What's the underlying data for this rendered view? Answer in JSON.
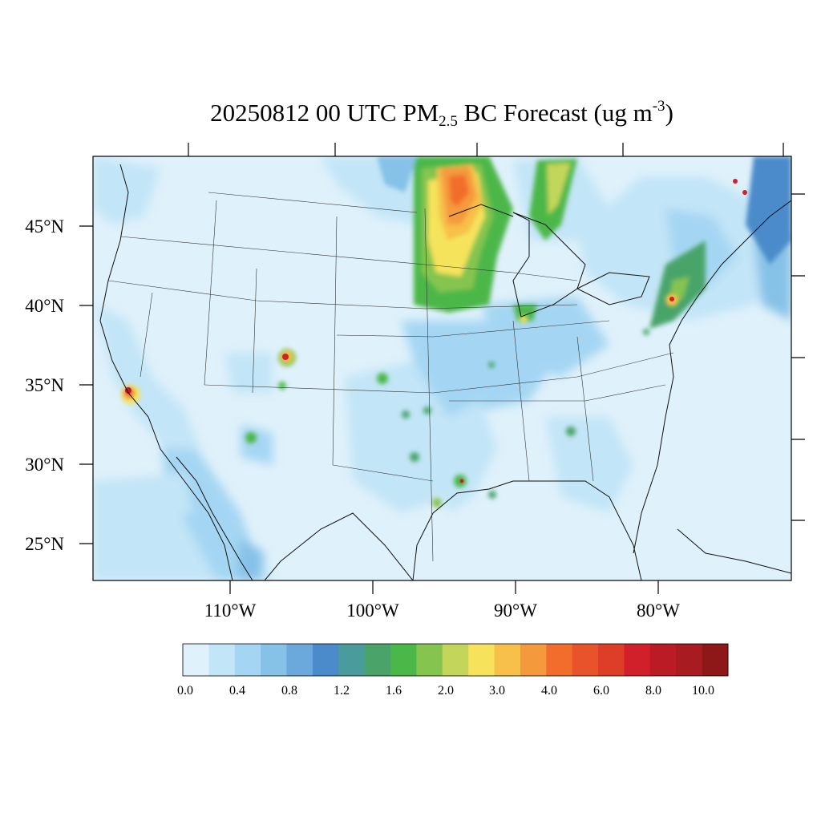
{
  "title": {
    "date": "20250812",
    "time": "00 UTC",
    "species_prefix": "PM",
    "species_sub": "2.5",
    "species_suffix": " BC Forecast (ug m",
    "unit_exp": "-3",
    "close": ")"
  },
  "lat_labels": [
    "45°N",
    "40°N",
    "35°N",
    "30°N",
    "25°N"
  ],
  "lat_values": [
    45,
    40,
    35,
    30,
    25
  ],
  "lon_labels": [
    "110°W",
    "100°W",
    "90°W",
    "80°W"
  ],
  "lon_values": [
    -110,
    -100,
    -90,
    -80
  ],
  "colorbar": {
    "labels": [
      "0.0",
      "0.4",
      "0.8",
      "1.2",
      "1.6",
      "2.0",
      "3.0",
      "4.0",
      "6.0",
      "8.0",
      "10.0"
    ],
    "colors": [
      "#dff1fb",
      "#c2e5f7",
      "#a4d6f3",
      "#86c1e7",
      "#6ba8dc",
      "#4b8bcb",
      "#4a9c9c",
      "#4aa46a",
      "#4bb748",
      "#85c44f",
      "#c3d65b",
      "#f6e35b",
      "#f6c04a",
      "#f59a3c",
      "#f26d2c",
      "#e9532c",
      "#de3d28",
      "#d12029",
      "#bb1b25",
      "#a81b21",
      "#8e1818"
    ]
  },
  "map": {
    "type": "filled-contour map",
    "colors": {
      "background": "#dff1fb",
      "low": "#c2e5f7",
      "moderate": "#86c1e7",
      "plume_green": "#4bb748",
      "plume_yellow": "#f6e35b",
      "plume_orange": "#f26d2c",
      "hotspot_red": "#bb1b25"
    }
  }
}
